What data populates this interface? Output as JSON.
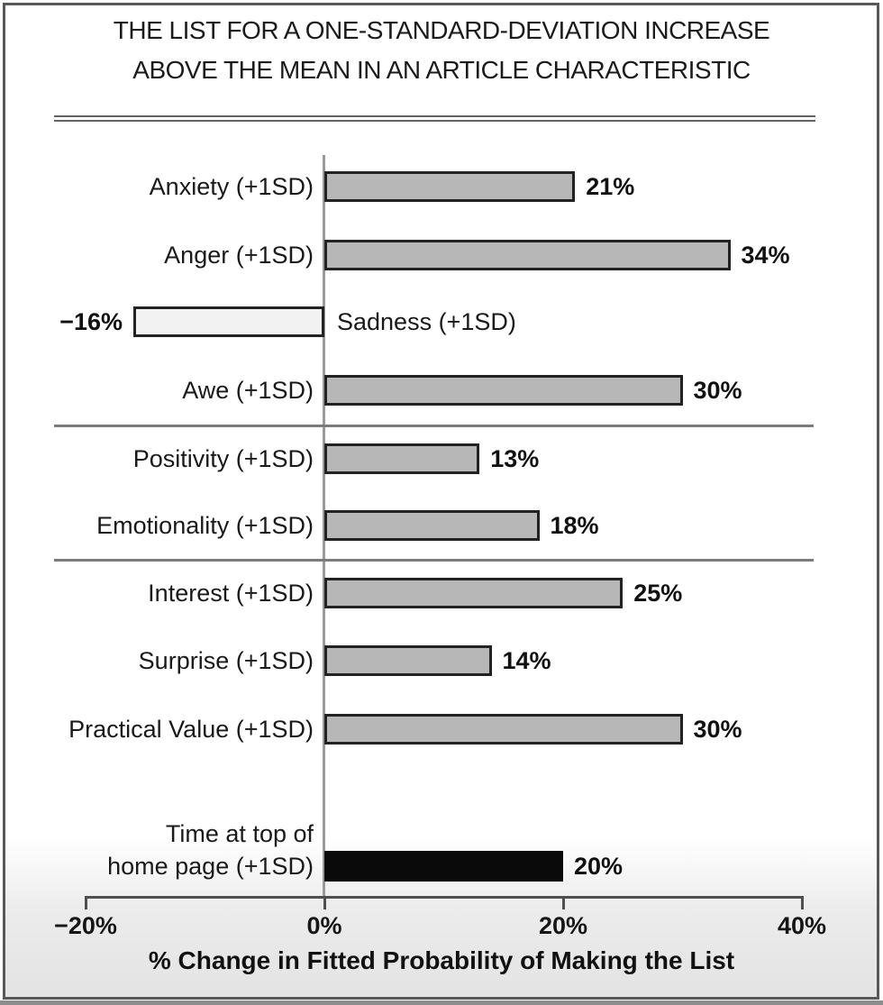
{
  "figure_title": {
    "line1": "THE LIST FOR A ONE-STANDARD-DEVIATION INCREASE",
    "line2": "ABOVE THE MEAN IN AN ARTICLE CHARACTERISTIC"
  },
  "chart_data": {
    "type": "bar",
    "orientation": "horizontal",
    "title": "THE LIST FOR A ONE-STANDARD-DEVIATION INCREASE ABOVE THE MEAN IN AN ARTICLE CHARACTERISTIC",
    "xlabel": "% Change in Fitted Probability of Making the List",
    "unit": "%",
    "xlim": [
      -20,
      40
    ],
    "grid": false,
    "x_ticks": [
      {
        "label": "−20%",
        "value": -20
      },
      {
        "label": "0%",
        "value": 0
      },
      {
        "label": "20%",
        "value": 20
      },
      {
        "label": "40%",
        "value": 40
      }
    ],
    "rows": [
      {
        "label": "Anxiety (+1SD)",
        "value": 21,
        "value_label": "21%",
        "style": "gray",
        "group": 1
      },
      {
        "label": "Anger (+1SD)",
        "value": 34,
        "value_label": "34%",
        "style": "gray",
        "group": 1
      },
      {
        "label": "Sadness (+1SD)",
        "value": -16,
        "value_label": "−16%",
        "style": "light",
        "group": 1
      },
      {
        "label": "Awe (+1SD)",
        "value": 30,
        "value_label": "30%",
        "style": "gray",
        "group": 1
      },
      {
        "label": "Positivity (+1SD)",
        "value": 13,
        "value_label": "13%",
        "style": "gray",
        "group": 2
      },
      {
        "label": "Emotionality (+1SD)",
        "value": 18,
        "value_label": "18%",
        "style": "gray",
        "group": 2
      },
      {
        "label": "Interest (+1SD)",
        "value": 25,
        "value_label": "25%",
        "style": "gray",
        "group": 3
      },
      {
        "label": "Surprise (+1SD)",
        "value": 14,
        "value_label": "14%",
        "style": "gray",
        "group": 3
      },
      {
        "label": "Practical Value (+1SD)",
        "value": 30,
        "value_label": "30%",
        "style": "gray",
        "group": 3
      },
      {
        "label": "Time at top of\nhome page (+1SD)",
        "value": 20,
        "value_label": "20%",
        "style": "black",
        "group": 4
      }
    ],
    "colors": {
      "bar_gray": "#b7b7b7",
      "bar_light": "#f2f2f2",
      "bar_black": "#0a0a0a",
      "bar_border": "#222222",
      "zero_axis": "#9a9a9a",
      "x_axis": "#4f4f4f",
      "separator": "#7b7b7b",
      "text": "#1a1a1a"
    }
  }
}
